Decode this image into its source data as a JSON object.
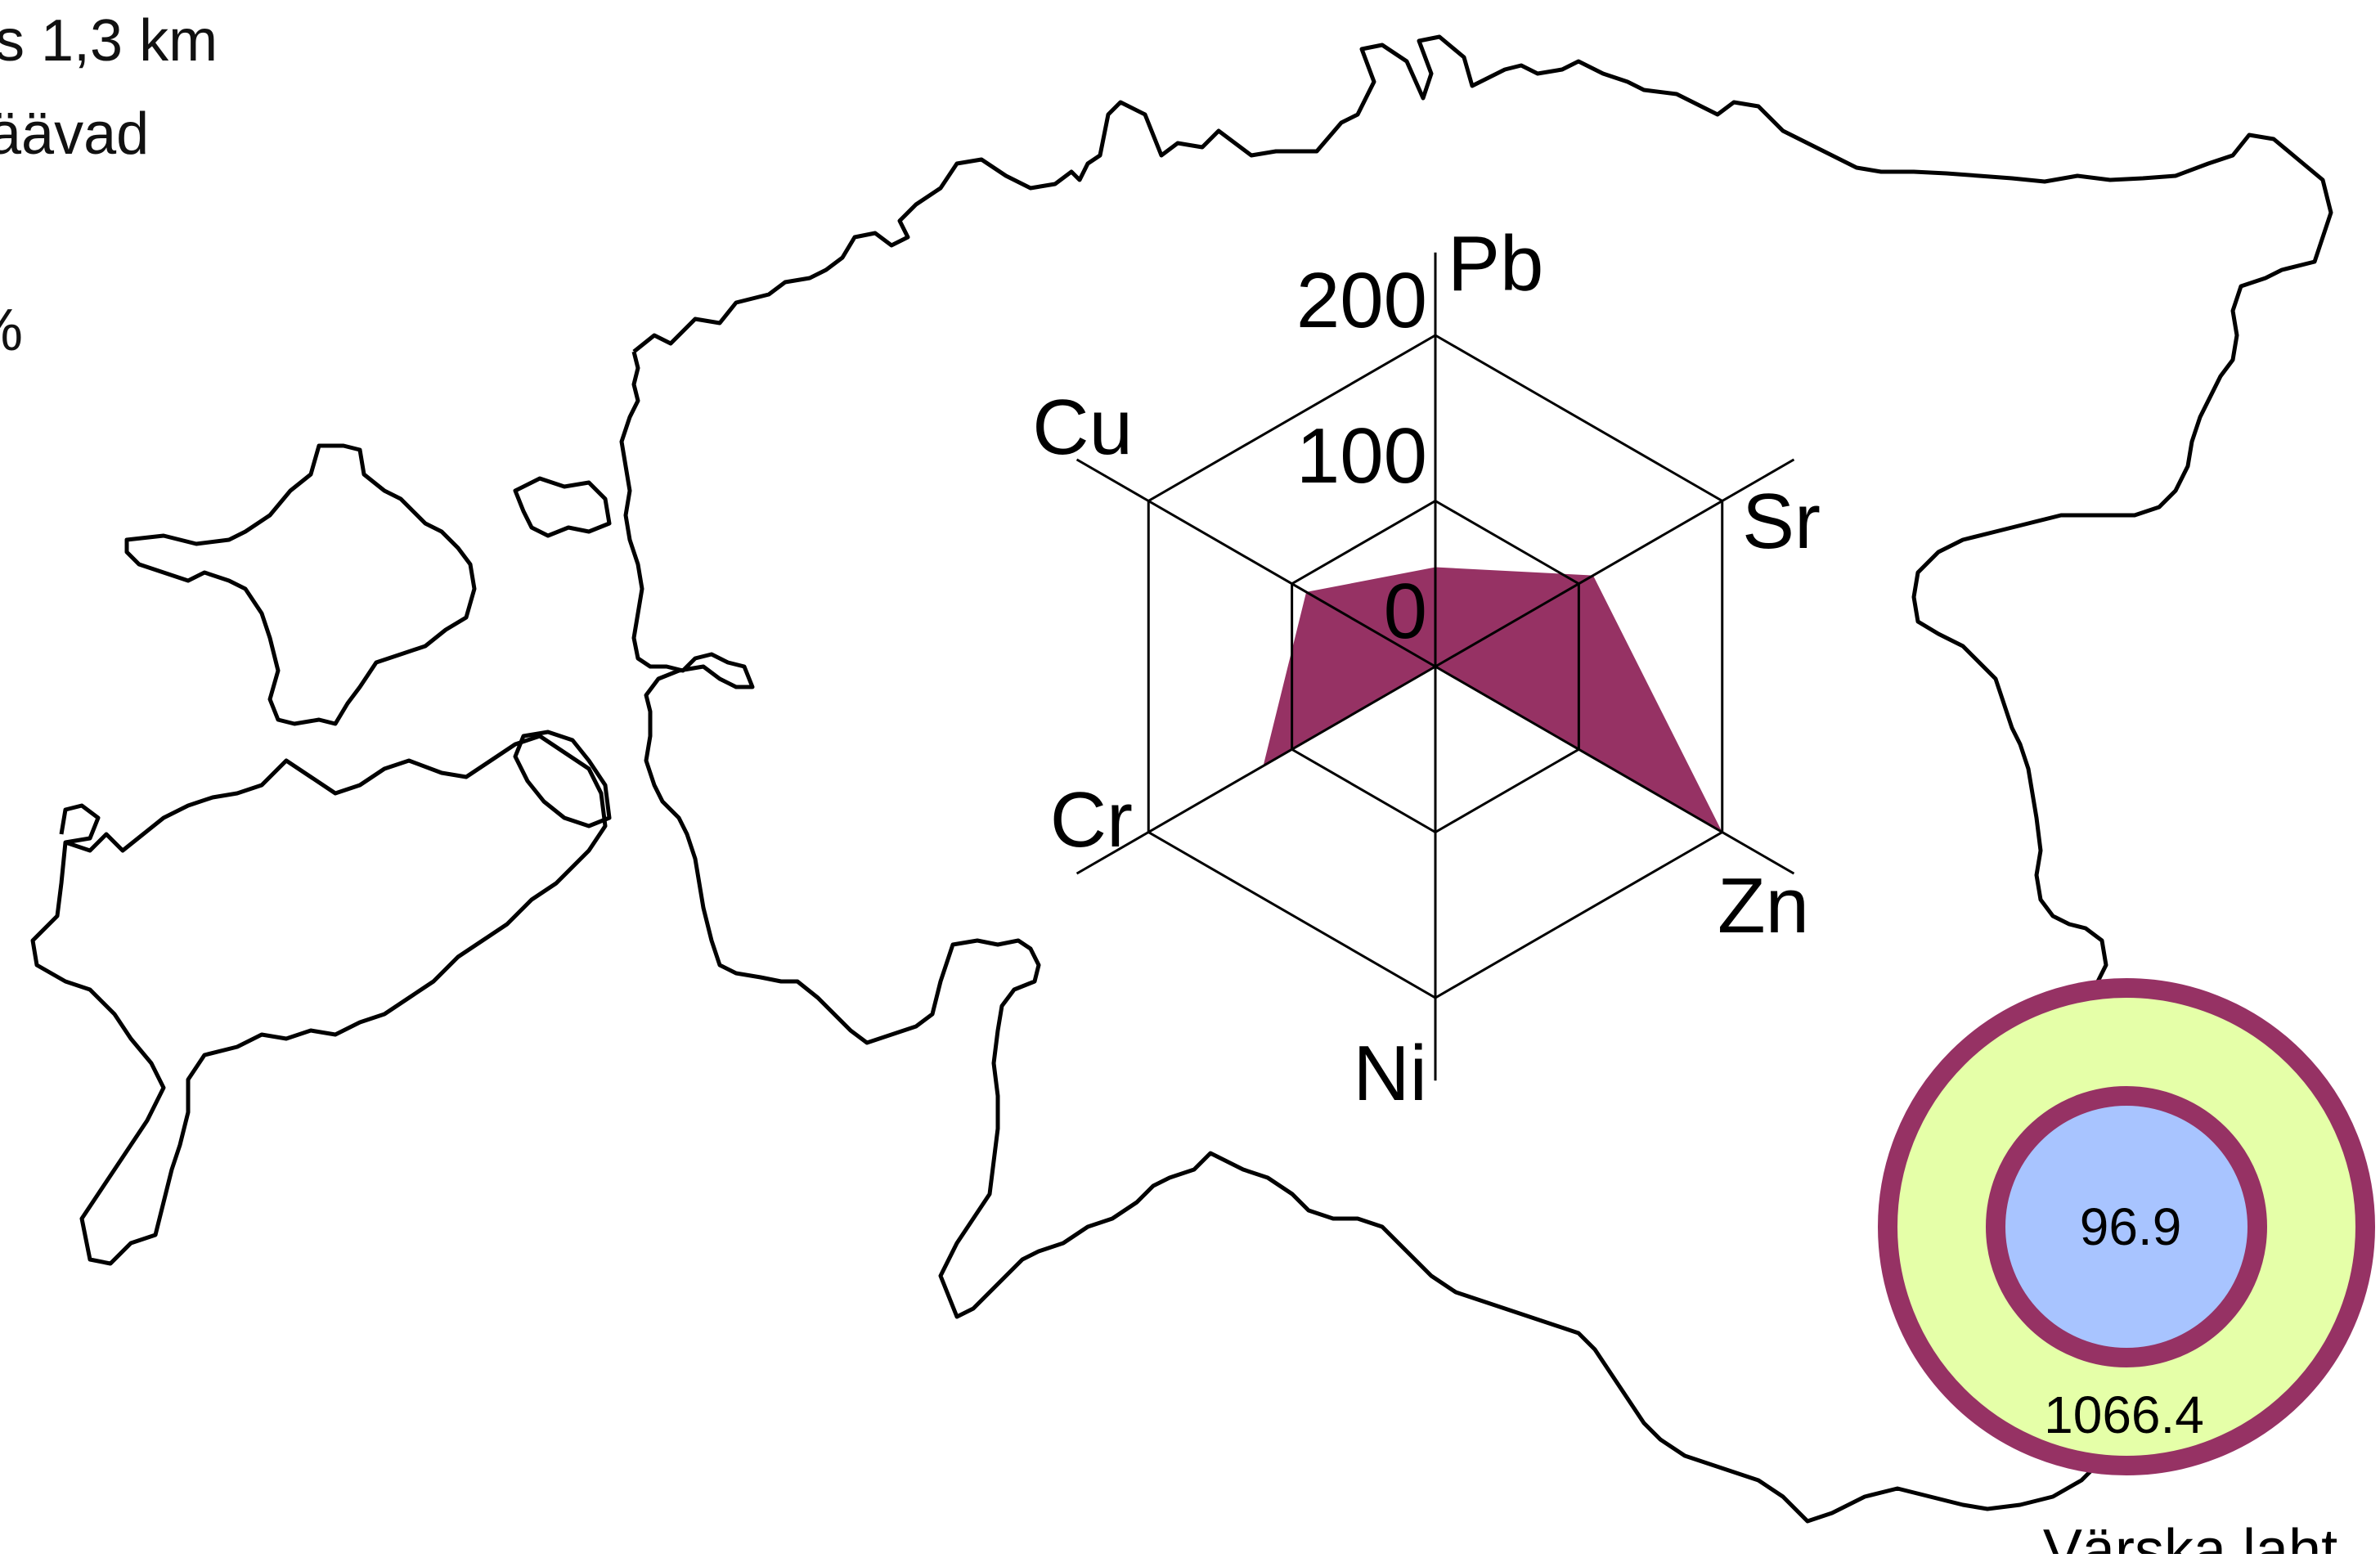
{
  "legend": {
    "lines": [
      "s 1,3 km",
      "äävad",
      "%"
    ]
  },
  "radar": {
    "axes": [
      "Pb",
      "Sr",
      "Zn",
      "Ni",
      "Cr",
      "Cu"
    ],
    "scale_labels": [
      "0",
      "100",
      "200"
    ],
    "ring_max": 200,
    "fill_color": "#963264",
    "values": {
      "Pb": 60,
      "Sr": 110,
      "Zn": 200,
      "Ni": 0,
      "Cr": 120,
      "Cu": 90
    }
  },
  "station": {
    "name": "Värska laht",
    "inner_value": "96.9",
    "outer_value": "1066.4",
    "ring_color": "#963264",
    "outer_fill": "#e5ffa8",
    "inner_fill": "#a8c4ff"
  }
}
